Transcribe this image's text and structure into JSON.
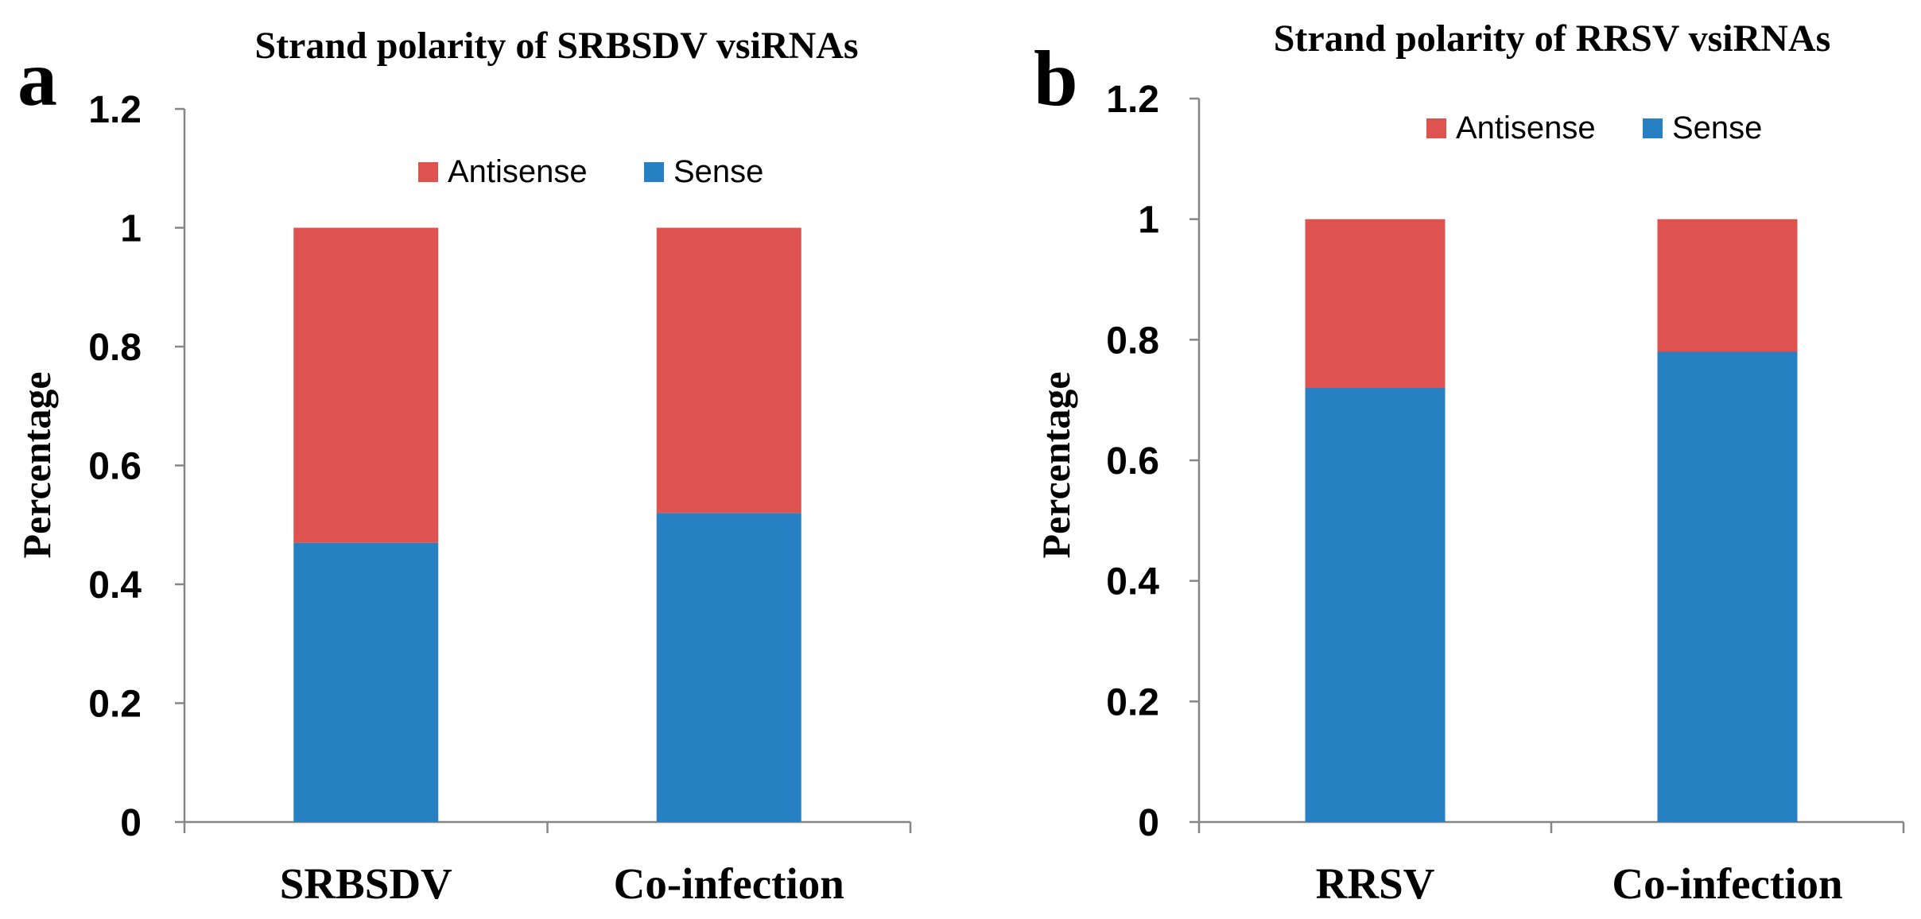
{
  "chart_data": [
    {
      "type": "bar",
      "stacked": true,
      "panel_label": "a",
      "title": "Strand polarity of SRBSDV vsiRNAs",
      "xlabel": "",
      "ylabel": "Percentage",
      "ylim": [
        0,
        1.2
      ],
      "yticks": [
        "0",
        "0.2",
        "0.4",
        "0.6",
        "0.8",
        "1",
        "1.2"
      ],
      "categories": [
        "SRBSDV",
        "Co-infection"
      ],
      "series": [
        {
          "name": "Sense",
          "color": "#2680C2",
          "values": [
            0.47,
            0.52
          ]
        },
        {
          "name": "Antisense",
          "color": "#DE524F",
          "values": [
            0.53,
            0.48
          ]
        }
      ],
      "legend": {
        "placement": "top",
        "order": [
          "Antisense",
          "Sense"
        ]
      },
      "grid": false
    },
    {
      "type": "bar",
      "stacked": true,
      "panel_label": "b",
      "title": "Strand polarity of RRSV vsiRNAs",
      "xlabel": "",
      "ylabel": "Percentage",
      "ylim": [
        0,
        1.2
      ],
      "yticks": [
        "0",
        "0.2",
        "0.4",
        "0.6",
        "0.8",
        "1",
        "1.2"
      ],
      "categories": [
        "RRSV",
        "Co-infection"
      ],
      "series": [
        {
          "name": "Sense",
          "color": "#2680C2",
          "values": [
            0.72,
            0.78
          ]
        },
        {
          "name": "Antisense",
          "color": "#DE524F",
          "values": [
            0.28,
            0.22
          ]
        }
      ],
      "legend": {
        "placement": "top",
        "order": [
          "Antisense",
          "Sense"
        ]
      },
      "grid": false
    }
  ]
}
